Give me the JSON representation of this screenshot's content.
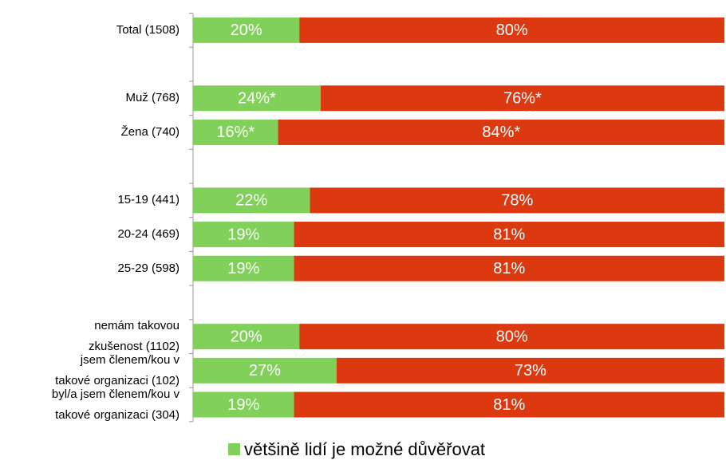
{
  "chart_data": {
    "type": "stacked-bar",
    "orientation": "horizontal",
    "categories": [
      "Total (1508)",
      null,
      "Muž (768)",
      "Žena (740)",
      null,
      "15-19  (441)",
      "20-24  (469)",
      "25-29  (598)",
      null,
      "nemám takovou\nzkušenost (1102)",
      "jsem členem/kou v\ntakové organizaci (102)",
      "byl/a jsem členem/kou v\ntakové organizaci (304)"
    ],
    "series": [
      {
        "name": "většině lidí je možné důvěřovat",
        "color": "#80d05a",
        "values": [
          20,
          null,
          24,
          16,
          null,
          22,
          19,
          19,
          null,
          20,
          27,
          19
        ],
        "value_labels": [
          "20%",
          null,
          "24%*",
          "16%*",
          null,
          "22%",
          "19%",
          "19%",
          null,
          "20%",
          "27%",
          "19%"
        ]
      },
      {
        "color": "#dc3911",
        "values": [
          80,
          null,
          76,
          84,
          null,
          78,
          81,
          81,
          null,
          80,
          73,
          81
        ],
        "value_labels": [
          "80%",
          null,
          "76%*",
          "84%*",
          null,
          "78%",
          "81%",
          "81%",
          null,
          "80%",
          "73%",
          "81%"
        ]
      }
    ],
    "xlim": [
      0,
      100
    ],
    "legend": "bottom"
  }
}
